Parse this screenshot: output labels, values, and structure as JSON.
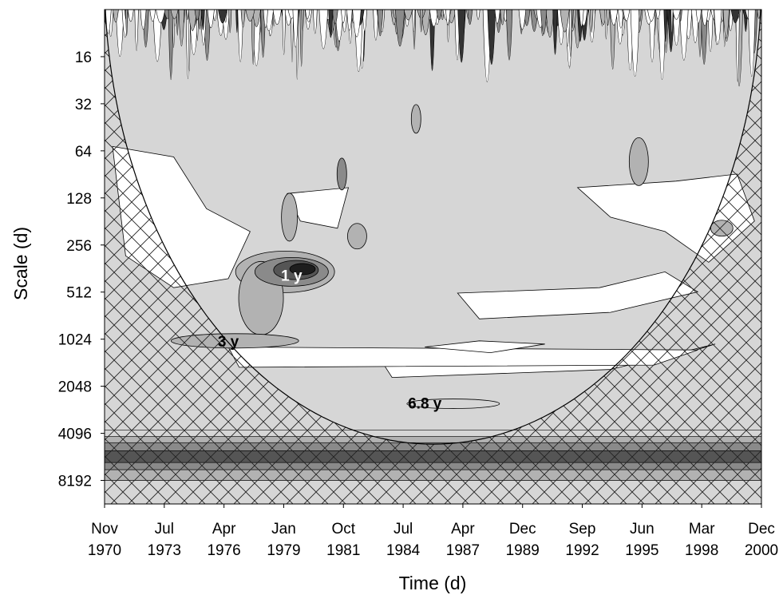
{
  "chart_data": {
    "type": "heatmap",
    "xlabel": "Time (d)",
    "ylabel": "Scale (d)",
    "y_scale": "log2",
    "y_ticks": [
      16,
      32,
      64,
      128,
      256,
      512,
      1024,
      2048,
      4096,
      8192
    ],
    "y_range": [
      8,
      11585
    ],
    "x_ticks": [
      {
        "line1": "Nov",
        "line2": "1970"
      },
      {
        "line1": "Jul",
        "line2": "1973"
      },
      {
        "line1": "Apr",
        "line2": "1976"
      },
      {
        "line1": "Jan",
        "line2": "1979"
      },
      {
        "line1": "Oct",
        "line2": "1981"
      },
      {
        "line1": "Jul",
        "line2": "1984"
      },
      {
        "line1": "Apr",
        "line2": "1987"
      },
      {
        "line1": "Dec",
        "line2": "1989"
      },
      {
        "line1": "Sep",
        "line2": "1992"
      },
      {
        "line1": "Jun",
        "line2": "1995"
      },
      {
        "line1": "Mar",
        "line2": "1998"
      },
      {
        "line1": "Dec",
        "line2": "2000"
      }
    ],
    "x_range": [
      "Nov 1970",
      "Dec 2000"
    ],
    "cone_of_influence": "hatched",
    "contour_fill_colors": [
      "#ffffff",
      "#d6d6d6",
      "#b2b2b2",
      "#8a8a8a",
      "#555555",
      "#1e1e1e"
    ],
    "annotations": [
      {
        "text": "1 y",
        "x_year": 1979.4,
        "scale": 400,
        "color": "#ffffff"
      },
      {
        "text": "3 y",
        "x_year": 1976.5,
        "scale": 1050,
        "color": "#000000"
      },
      {
        "text": "6.8 y",
        "x_year": 1985.5,
        "scale": 2620,
        "color": "#000000"
      }
    ]
  }
}
